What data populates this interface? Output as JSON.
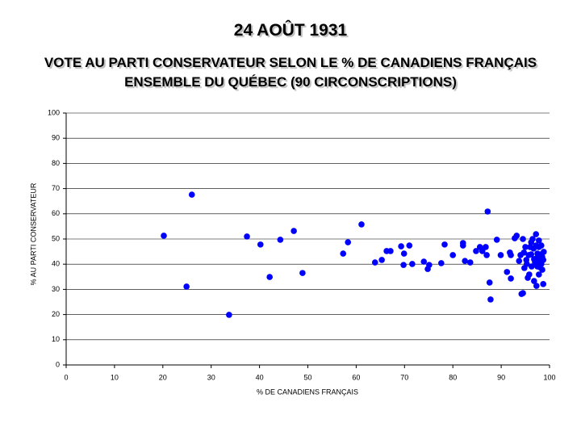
{
  "chart_data": {
    "type": "scatter",
    "title": "24 AOÛT 1931",
    "subtitle": [
      "VOTE AU PARTI CONSERVATEUR SELON LE % DE CANADIENS FRANÇAIS",
      "ENSEMBLE DU QUÉBEC (90 CIRCONSCRIPTIONS)"
    ],
    "x_label": "% DE CANADIENS FRANÇAIS",
    "y_label": "% AU PARTI CONSERVATEUR",
    "color": "#0000ff",
    "grid": true,
    "xlim": [
      0,
      100
    ],
    "xticks": [
      0,
      10,
      20,
      30,
      40,
      50,
      60,
      70,
      80,
      90,
      100
    ],
    "ylim": [
      0,
      100
    ],
    "yticks": [
      0,
      10,
      20,
      30,
      40,
      50,
      60,
      70,
      80,
      90,
      100
    ],
    "x": [
      26.0,
      20.2,
      24.9,
      33.7,
      37.4,
      40.2,
      42.1,
      44.3,
      47.1,
      48.9,
      57.3,
      58.3,
      61.1,
      63.9,
      65.3,
      66.3,
      67.1,
      69.3,
      69.9,
      69.8,
      71.0,
      71.6,
      74.0,
      74.8,
      75.1,
      77.6,
      78.3,
      80.0,
      82.1,
      82.1,
      82.5,
      83.6,
      84.8,
      85.6,
      86.1,
      86.8,
      87.0,
      87.2,
      87.6,
      87.8,
      89.1,
      89.9,
      91.2,
      91.8,
      92.0,
      92.0,
      92.8,
      93.2,
      93.7,
      94.0,
      94.2,
      94.5,
      94.5,
      94.7,
      95.0,
      95.2,
      95.3,
      95.5,
      95.7,
      96.0,
      96.2,
      96.2,
      96.3,
      96.5,
      96.7,
      96.8,
      97.0,
      97.2,
      97.2,
      97.3,
      97.3,
      97.5,
      97.7,
      97.8,
      97.8,
      98.0,
      98.2,
      98.2,
      98.3,
      98.3,
      98.5,
      98.5,
      98.7,
      98.7,
      98.8,
      97.8,
      96.8,
      95.8,
      94.8,
      97.5
    ],
    "values": [
      67.6,
      51.3,
      31.1,
      19.9,
      51.0,
      47.8,
      34.9,
      49.7,
      53.2,
      36.5,
      44.2,
      48.7,
      55.8,
      40.7,
      41.7,
      45.2,
      45.2,
      47.1,
      44.2,
      39.7,
      47.4,
      40.1,
      41.0,
      38.1,
      39.7,
      40.4,
      47.8,
      43.6,
      47.4,
      48.4,
      41.3,
      40.7,
      45.2,
      46.8,
      45.2,
      46.8,
      43.6,
      60.9,
      32.7,
      26.0,
      49.7,
      43.6,
      36.9,
      44.6,
      43.6,
      34.3,
      50.3,
      51.3,
      41.3,
      43.6,
      28.2,
      28.5,
      50.0,
      44.6,
      46.8,
      41.7,
      40.1,
      34.6,
      43.6,
      46.8,
      48.7,
      43.9,
      39.1,
      50.0,
      46.2,
      33.3,
      40.7,
      51.9,
      47.4,
      42.3,
      31.4,
      44.2,
      40.4,
      46.8,
      35.9,
      38.8,
      43.9,
      41.7,
      47.4,
      40.1,
      42.9,
      37.8,
      32.1,
      41.7,
      44.9,
      49.4,
      42.0,
      35.9,
      38.5,
      39.1
    ]
  }
}
